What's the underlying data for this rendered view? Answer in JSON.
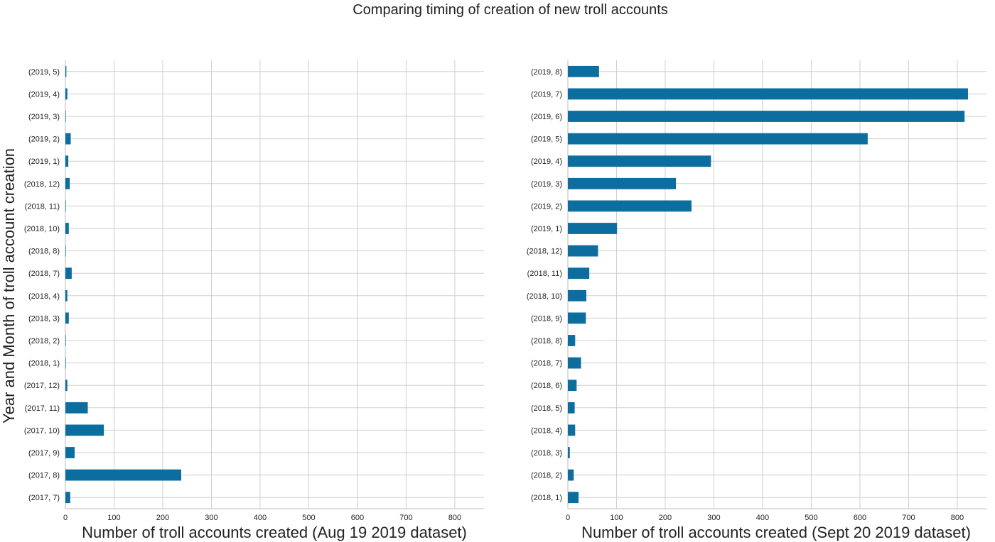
{
  "suptitle": "Comparing timing of creation of new troll accounts",
  "bar_color": "#0b6e9e",
  "grid_color": "#cfcfcf",
  "chart_data": [
    {
      "type": "bar",
      "orientation": "horizontal",
      "xlabel": "Number of troll accounts created (Aug 19 2019 dataset)",
      "ylabel": "Year and Month of troll account creation",
      "xlim": [
        0,
        860
      ],
      "xticks": [
        0,
        100,
        200,
        300,
        400,
        500,
        600,
        700,
        800
      ],
      "grid": true,
      "categories": [
        "(2019, 5)",
        "(2019, 4)",
        "(2019, 3)",
        "(2019, 2)",
        "(2019, 1)",
        "(2018, 12)",
        "(2018, 11)",
        "(2018, 10)",
        "(2018, 8)",
        "(2018, 7)",
        "(2018, 4)",
        "(2018, 3)",
        "(2018, 2)",
        "(2018, 1)",
        "(2017, 12)",
        "(2017, 11)",
        "(2017, 10)",
        "(2017, 9)",
        "(2017, 8)",
        "(2017, 7)"
      ],
      "values": [
        2,
        4,
        1,
        11,
        6,
        9,
        1,
        7,
        1,
        13,
        4,
        7,
        1,
        1,
        4,
        46,
        79,
        19,
        238,
        10
      ]
    },
    {
      "type": "bar",
      "orientation": "horizontal",
      "xlabel": "Number of troll accounts created (Sept 20 2019 dataset)",
      "ylabel": "",
      "xlim": [
        0,
        860
      ],
      "xticks": [
        0,
        100,
        200,
        300,
        400,
        500,
        600,
        700,
        800
      ],
      "grid": true,
      "categories": [
        "(2019, 8)",
        "(2019, 7)",
        "(2019, 6)",
        "(2019, 5)",
        "(2019, 4)",
        "(2019, 3)",
        "(2019, 2)",
        "(2019, 1)",
        "(2018, 12)",
        "(2018, 11)",
        "(2018, 10)",
        "(2018, 9)",
        "(2018, 8)",
        "(2018, 7)",
        "(2018, 6)",
        "(2018, 5)",
        "(2018, 4)",
        "(2018, 3)",
        "(2018, 2)",
        "(2018, 1)"
      ],
      "values": [
        64,
        822,
        815,
        616,
        294,
        222,
        254,
        101,
        62,
        44,
        38,
        37,
        15,
        27,
        18,
        14,
        15,
        4,
        12,
        22
      ]
    }
  ]
}
